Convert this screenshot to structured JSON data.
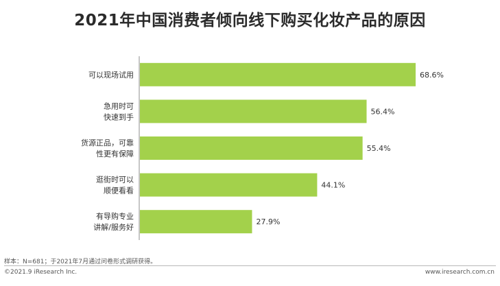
{
  "colors": {
    "bar": "#a3d14b",
    "axis": "#8c8c8c",
    "text": "#333333"
  },
  "chart_data": {
    "type": "bar",
    "orientation": "horizontal",
    "title": "2021年中国消费者倾向线下购买化妆产品的原因",
    "categories": [
      [
        "可以现场试用"
      ],
      [
        "急用时可",
        "快速到手"
      ],
      [
        "货源正品，可靠",
        "性更有保障"
      ],
      [
        "逛街时可以",
        "顺便看看"
      ],
      [
        "有导购专业",
        "讲解/服务好"
      ]
    ],
    "values": [
      68.6,
      56.4,
      55.4,
      44.1,
      27.9
    ],
    "value_labels": [
      "68.6%",
      "56.4%",
      "55.4%",
      "44.1%",
      "27.9%"
    ],
    "xlim": [
      0,
      100
    ],
    "grid": false,
    "legend": "none"
  },
  "footer": {
    "note": "样本：N=681；于2021年7月通过问卷形式调研获得。",
    "copyright": "©2021.9 iResearch Inc.",
    "website": "www.iresearch.com.cn"
  }
}
